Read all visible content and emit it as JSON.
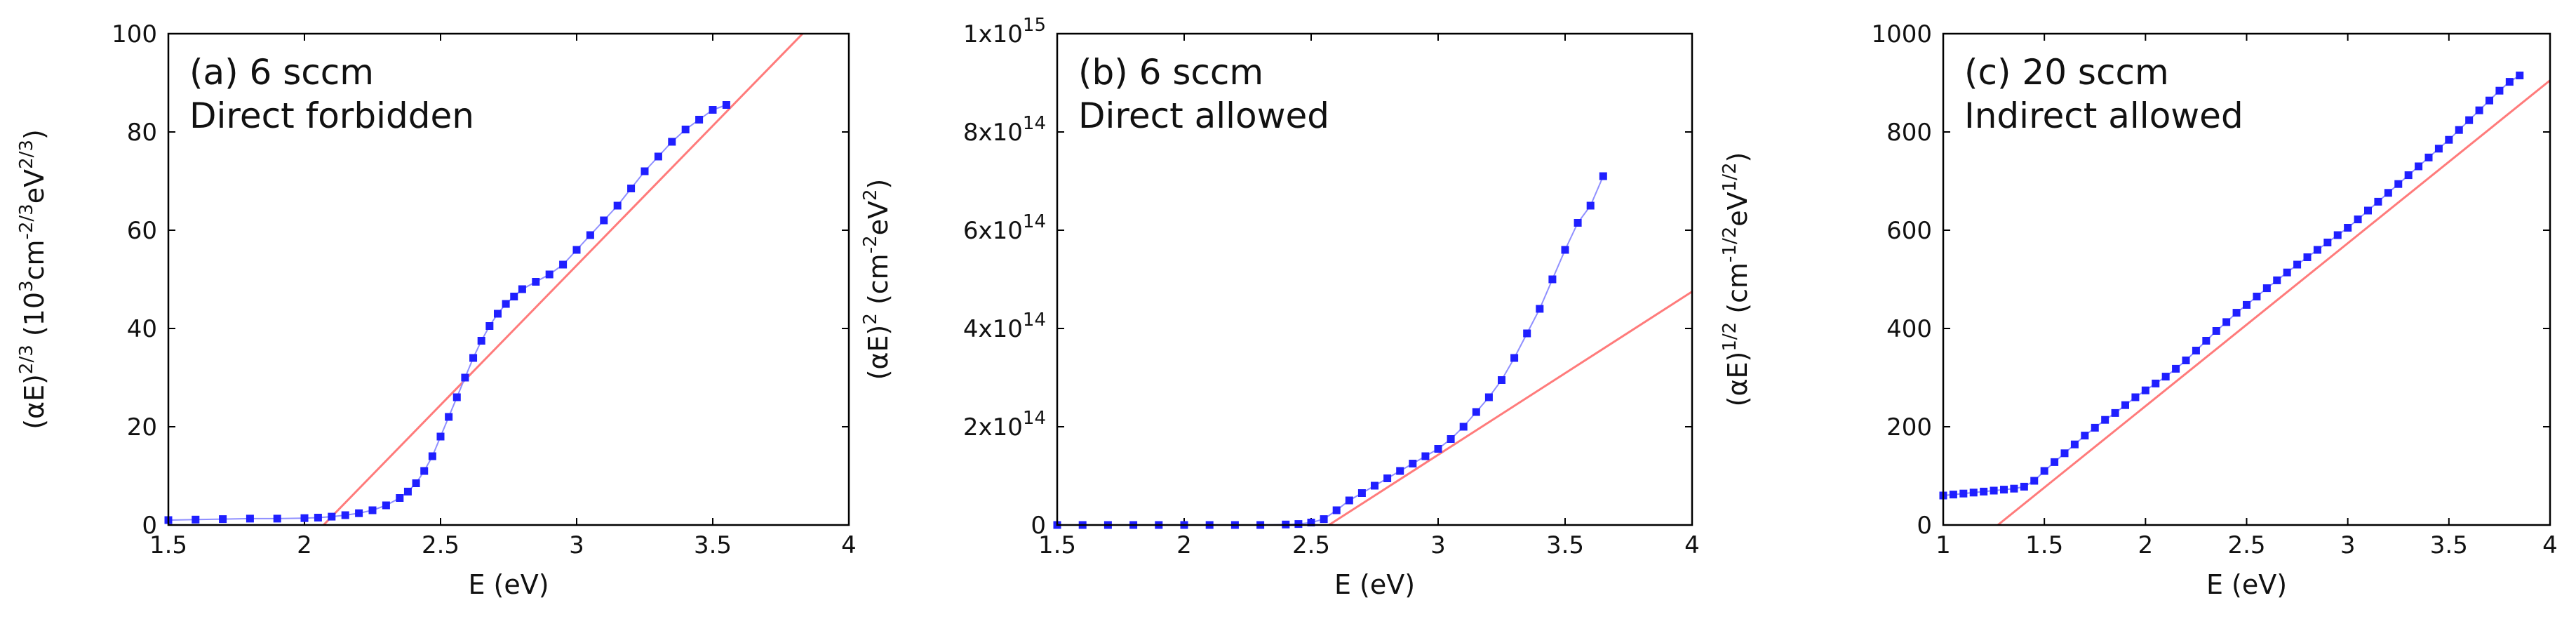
{
  "colors": {
    "data": "#1f1fff",
    "fit": "#ff7b7b",
    "axis": "#000000"
  },
  "chart_data": [
    {
      "type": "scatter",
      "panel": "a",
      "annotation": [
        "(a) 6 sccm",
        "Direct forbidden"
      ],
      "xlabel": "E (eV)",
      "ylabel": {
        "base": "(αE)",
        "exp": "2/3",
        "unit_open": " (10",
        "unit_exp1": "3",
        "unit_mid": "cm",
        "unit_exp2": "-2/3",
        "unit_mid2": "eV",
        "unit_exp3": "2/3",
        "unit_close": ")"
      },
      "xlim": [
        1.5,
        4
      ],
      "ylim": [
        0,
        100
      ],
      "xticks": [
        "1.5",
        "2",
        "2.5",
        "3",
        "3.5",
        "4"
      ],
      "yticks": [
        "0",
        "20",
        "40",
        "60",
        "80",
        "100"
      ],
      "series": [
        {
          "x": [
            1.5,
            1.6,
            1.7,
            1.8,
            1.9,
            2.0,
            2.05,
            2.1,
            2.15,
            2.2,
            2.25,
            2.3,
            2.35,
            2.38,
            2.41,
            2.44,
            2.47,
            2.5,
            2.53,
            2.56,
            2.59,
            2.62,
            2.65,
            2.68,
            2.71,
            2.74,
            2.77,
            2.8,
            2.85,
            2.9,
            2.95,
            3.0,
            3.05,
            3.1,
            3.15,
            3.2,
            3.25,
            3.3,
            3.35,
            3.4,
            3.45,
            3.5,
            3.55
          ],
          "y": [
            1.0,
            1.1,
            1.2,
            1.3,
            1.3,
            1.4,
            1.5,
            1.7,
            2.0,
            2.4,
            3.0,
            4.0,
            5.5,
            6.8,
            8.5,
            11,
            14,
            18,
            22,
            26,
            30,
            34,
            37.5,
            40.5,
            43,
            45,
            46.5,
            48,
            49.5,
            51,
            53,
            56,
            59,
            62,
            65,
            68.5,
            72,
            75,
            78,
            80.5,
            82.5,
            84.5,
            85.5
          ]
        }
      ],
      "fit_line": {
        "x": [
          2.07,
          3.83
        ],
        "y": [
          0,
          100
        ]
      }
    },
    {
      "type": "scatter",
      "panel": "b",
      "annotation": [
        "(b) 6 sccm",
        "Direct allowed"
      ],
      "xlabel": "E (eV)",
      "ylabel": {
        "base": "(αE)",
        "exp": "2",
        "unit_open": " (cm",
        "unit_exp1": "-2",
        "unit_mid": "eV",
        "unit_exp2": "2",
        "unit_close": ")"
      },
      "xlim": [
        1.5,
        4
      ],
      "ylim": [
        0,
        1000000000000000.0
      ],
      "xticks": [
        "1.5",
        "2",
        "2.5",
        "3",
        "3.5",
        "4"
      ],
      "yticks": [
        {
          "base": "0",
          "exp": ""
        },
        {
          "base": "2x10",
          "exp": "14"
        },
        {
          "base": "4x10",
          "exp": "14"
        },
        {
          "base": "6x10",
          "exp": "14"
        },
        {
          "base": "8x10",
          "exp": "14"
        },
        {
          "base": "1x10",
          "exp": "15"
        }
      ],
      "series": [
        {
          "x": [
            1.5,
            1.6,
            1.7,
            1.8,
            1.9,
            2.0,
            2.1,
            2.2,
            2.3,
            2.4,
            2.45,
            2.5,
            2.55,
            2.6,
            2.65,
            2.7,
            2.75,
            2.8,
            2.85,
            2.9,
            2.95,
            3.0,
            3.05,
            3.1,
            3.15,
            3.2,
            3.25,
            3.3,
            3.35,
            3.4,
            3.45,
            3.5,
            3.55,
            3.6,
            3.65
          ],
          "y": [
            0,
            0,
            0,
            0,
            0,
            0,
            0,
            0,
            0,
            1000000000000.0,
            2000000000000.0,
            5000000000000.0,
            12000000000000.0,
            30000000000000.0,
            50000000000000.0,
            65000000000000.0,
            80000000000000.0,
            95000000000000.0,
            110000000000000.0,
            125000000000000.0,
            140000000000000.0,
            155000000000000.0,
            175000000000000.0,
            200000000000000.0,
            230000000000000.0,
            260000000000000.0,
            295000000000000.0,
            340000000000000.0,
            390000000000000.0,
            440000000000000.0,
            500000000000000.0,
            560000000000000.0,
            615000000000000.0,
            650000000000000.0,
            710000000000000.0
          ]
        }
      ],
      "fit_line": {
        "x": [
          2.57,
          4.0
        ],
        "y": [
          0,
          475000000000000.0
        ]
      }
    },
    {
      "type": "scatter",
      "panel": "c",
      "annotation": [
        "(c) 20 sccm",
        "Indirect allowed"
      ],
      "xlabel": "E (eV)",
      "ylabel": {
        "base": "(αE)",
        "exp": "1/2",
        "unit_open": " (cm",
        "unit_exp1": "-1/2",
        "unit_mid": "eV",
        "unit_exp2": "1/2",
        "unit_close": ")"
      },
      "xlim": [
        1,
        4
      ],
      "ylim": [
        0,
        1000
      ],
      "xticks": [
        "1",
        "1.5",
        "2",
        "2.5",
        "3",
        "3.5",
        "4"
      ],
      "yticks": [
        "0",
        "200",
        "400",
        "600",
        "800",
        "1000"
      ],
      "series": [
        {
          "x": [
            1.0,
            1.05,
            1.1,
            1.15,
            1.2,
            1.25,
            1.3,
            1.35,
            1.4,
            1.45,
            1.5,
            1.55,
            1.6,
            1.65,
            1.7,
            1.75,
            1.8,
            1.85,
            1.9,
            1.95,
            2.0,
            2.05,
            2.1,
            2.15,
            2.2,
            2.25,
            2.3,
            2.35,
            2.4,
            2.45,
            2.5,
            2.55,
            2.6,
            2.65,
            2.7,
            2.75,
            2.8,
            2.85,
            2.9,
            2.95,
            3.0,
            3.05,
            3.1,
            3.15,
            3.2,
            3.25,
            3.3,
            3.35,
            3.4,
            3.45,
            3.5,
            3.55,
            3.6,
            3.65,
            3.7,
            3.75,
            3.8,
            3.85
          ],
          "y": [
            60,
            62,
            64,
            66,
            68,
            70,
            72,
            74,
            78,
            90,
            110,
            128,
            146,
            164,
            182,
            198,
            214,
            228,
            244,
            260,
            274,
            288,
            302,
            318,
            335,
            355,
            375,
            395,
            413,
            432,
            448,
            465,
            482,
            498,
            514,
            530,
            545,
            560,
            575,
            590,
            605,
            622,
            640,
            658,
            676,
            694,
            712,
            730,
            748,
            766,
            784,
            804,
            824,
            844,
            864,
            884,
            902,
            915
          ]
        }
      ],
      "fit_line": {
        "x": [
          1.27,
          4.0
        ],
        "y": [
          0,
          905
        ]
      }
    }
  ]
}
